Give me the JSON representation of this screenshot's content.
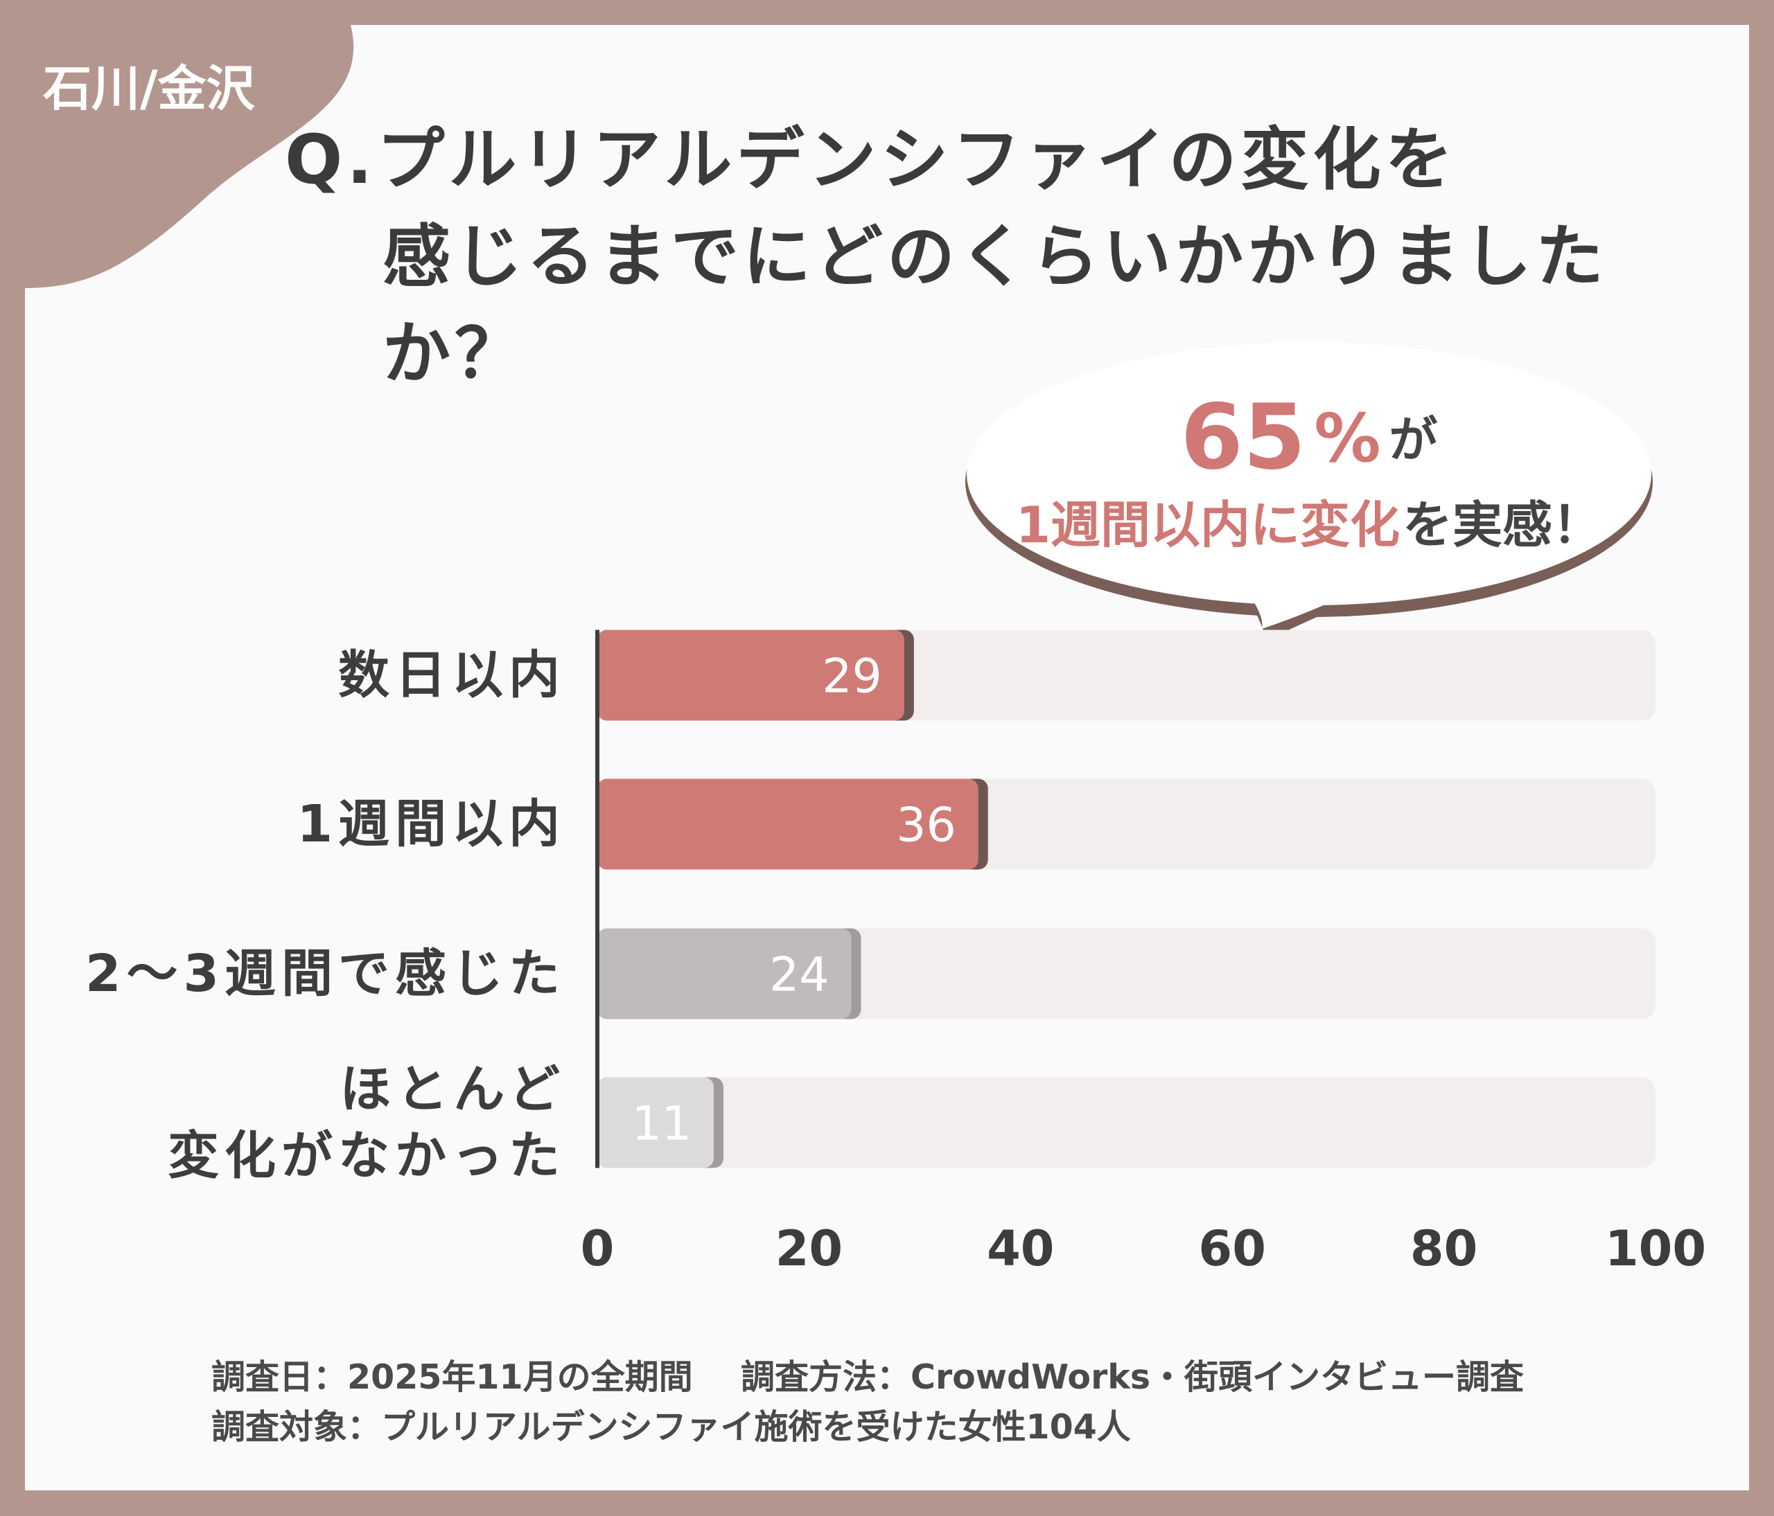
{
  "region": "石川/金沢",
  "chart_data": {
    "type": "bar",
    "orientation": "horizontal",
    "title": "Q.プルリアルデンシファイの変化を\n感じるまでにどのくらいかかりましたか？",
    "categories": [
      "数日以内",
      "1週間以内",
      "2〜3週間で感じた",
      "ほとんど\n変化がなかった"
    ],
    "values": [
      29,
      36,
      24,
      11
    ],
    "colors": [
      "#d07a76",
      "#d07a76",
      "#bfbbbb",
      "#dcdada"
    ],
    "track_color": "#f1eeed",
    "xlim": [
      0,
      100
    ],
    "xticks": [
      0,
      20,
      40,
      60,
      80,
      100
    ],
    "annotation": {
      "line1": [
        {
          "text": "65",
          "color": "#d07874"
        },
        {
          "text": "%",
          "color": "#d07874"
        },
        {
          "text": "が",
          "color": "#444444"
        }
      ],
      "line2": [
        {
          "text": "1週間以内に変化",
          "color": "#d07874"
        },
        {
          "text": "を実感！",
          "color": "#444444"
        }
      ]
    }
  },
  "footer": [
    "調査日：2025年11月の全期間",
    "調査方法：CrowdWorks・街頭インタビュー調査",
    "調査対象：プルリアルデンシファイ施術を受けた女性104人"
  ]
}
